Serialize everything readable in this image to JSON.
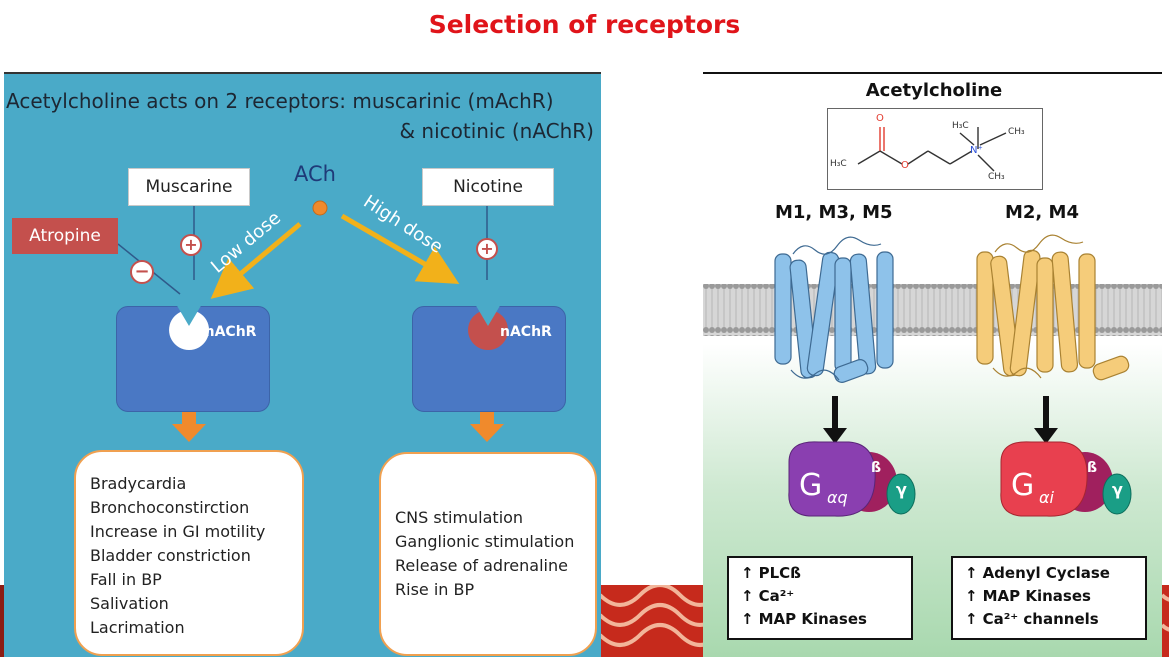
{
  "title": "Selection of receptors",
  "left": {
    "heading_line1": "Acetylcholine acts on 2 receptors: muscarinic (mAchR)",
    "heading_line2": "& nicotinic (nAChR)",
    "muscarine": "Muscarine",
    "nicotine": "Nicotine",
    "atropine": "Atropine",
    "ach": "ACh",
    "low_dose": "Low dose",
    "high_dose": "High dose",
    "plus_sign": "+",
    "minus_sign": "−",
    "machr": "mAChR",
    "nachr": "nAChR",
    "muscarinic_effects": [
      "Bradycardia",
      "Bronchoconstirction",
      "Increase in GI motility",
      "Bladder constriction",
      "Fall in BP",
      "Salivation",
      "Lacrimation"
    ],
    "nicotinic_effects": [
      "CNS stimulation",
      "Ganglionic stimulation",
      "Release of adrenaline",
      "Rise in BP"
    ]
  },
  "right": {
    "molecule_title": "Acetylcholine",
    "molecule_labels": {
      "h3c_left": "H₃C",
      "o1": "O",
      "o2": "O",
      "n": "N⁺",
      "h3c_top": "H₃C",
      "ch3_top": "CH₃",
      "ch3_bottom": "CH₃"
    },
    "group1": "M1, M3, M5",
    "group2": "M2, M4",
    "g1_protein": {
      "g": "G",
      "sub": "αq",
      "beta": "ß",
      "gamma": "γ"
    },
    "g2_protein": {
      "g": "G",
      "sub": "αi",
      "beta": "ß",
      "gamma": "γ"
    },
    "group1_effects": [
      "PLCß",
      "Ca²⁺",
      "MAP Kinases"
    ],
    "group2_effects": [
      "Adenyl Cyclase",
      "MAP Kinases",
      "Ca²⁺ channels"
    ],
    "colors": {
      "group1_helix": "#8ec2ea",
      "group2_helix": "#f5cc7a",
      "gaq": "#8a3fb0",
      "gai": "#e8404f",
      "beta": "#a0205e",
      "gamma": "#1a9e86"
    }
  }
}
